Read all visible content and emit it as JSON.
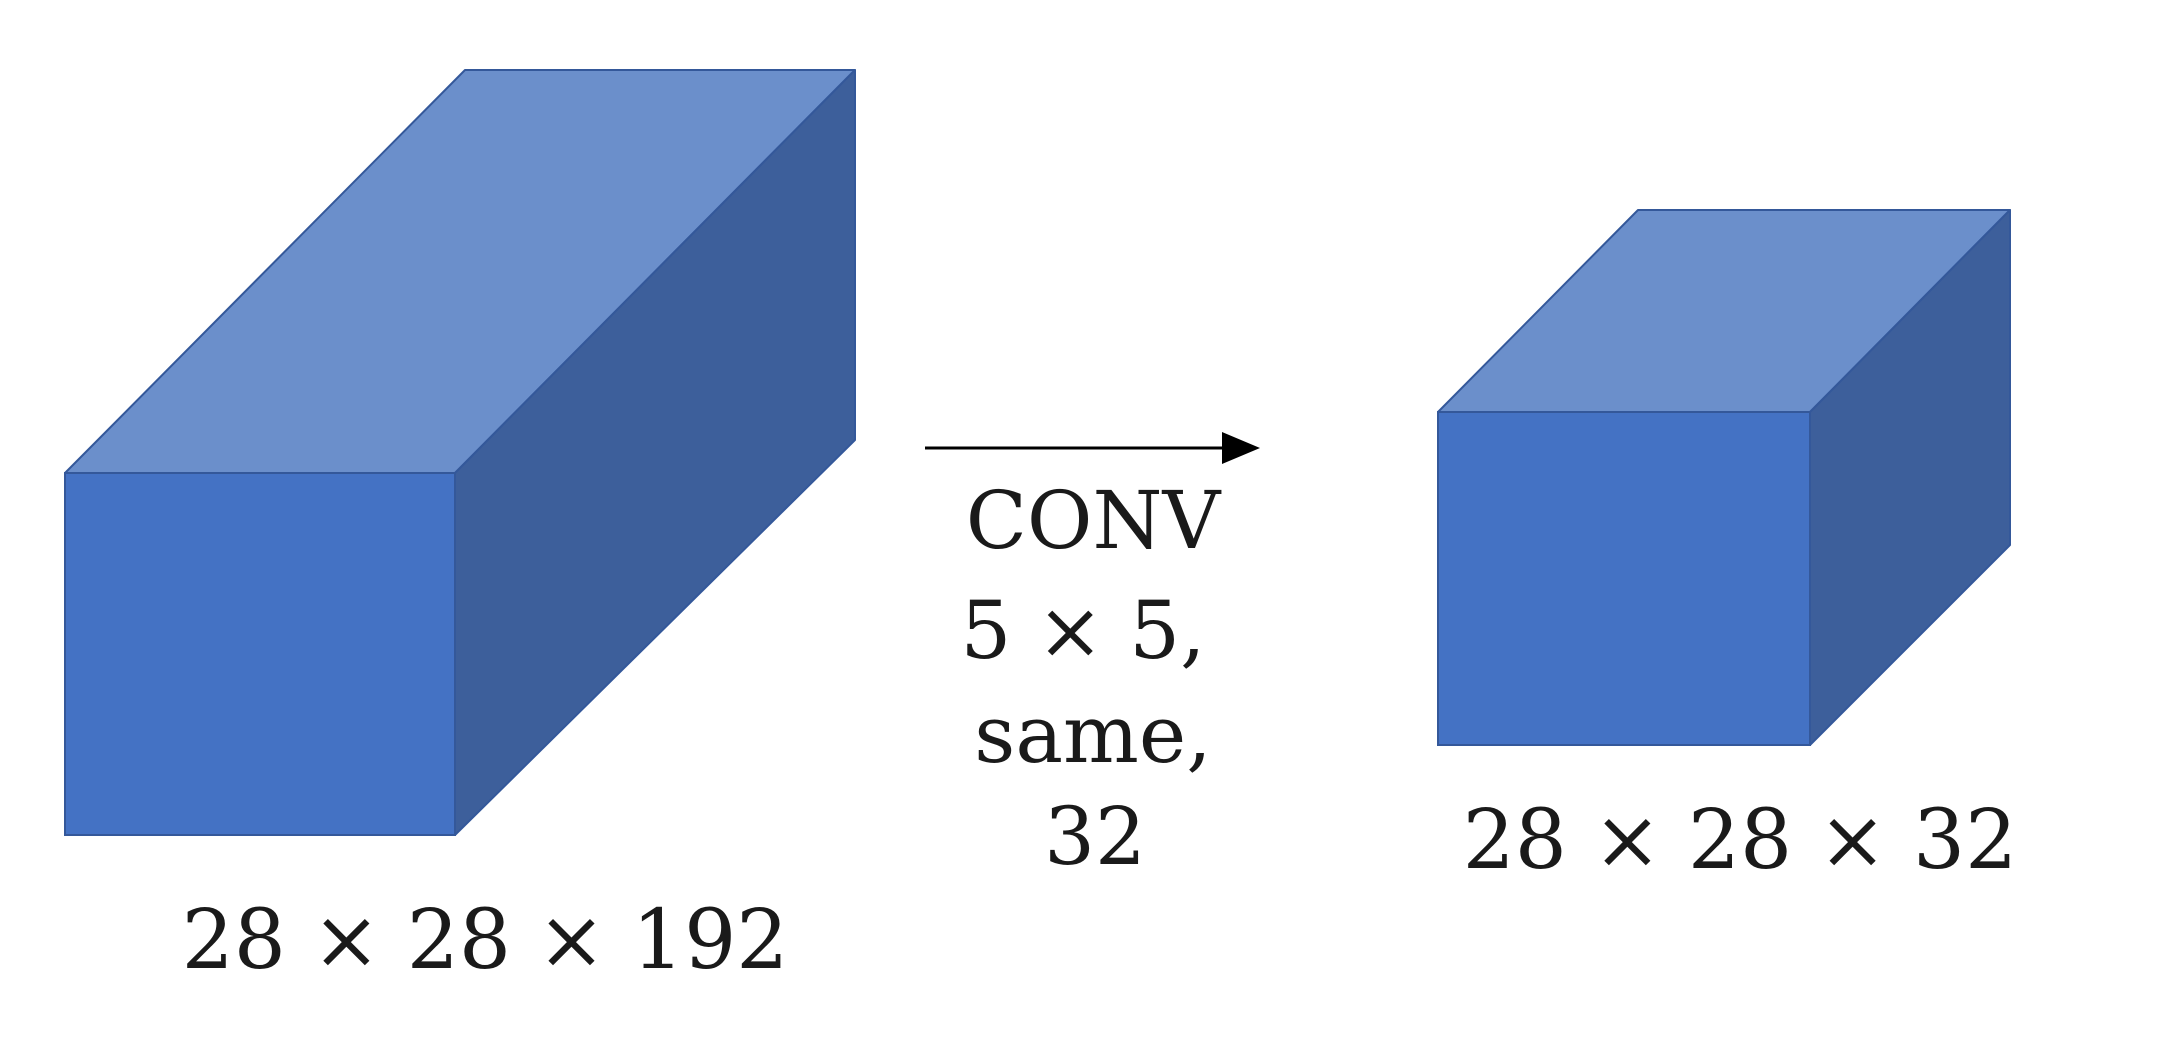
{
  "colors": {
    "front_face": "#4472C4",
    "top_face": "#6B8FCB",
    "side_face": "#3D5F9B",
    "edge": "#34589A",
    "text": "#1a1a1a",
    "arrow": "#000000"
  },
  "input_volume": {
    "label": "28 × 28 × 192"
  },
  "operation": {
    "lines": [
      "CONV",
      "5 × 5,",
      "same,",
      "32"
    ]
  },
  "output_volume": {
    "label": "28 × 28 × 32"
  }
}
